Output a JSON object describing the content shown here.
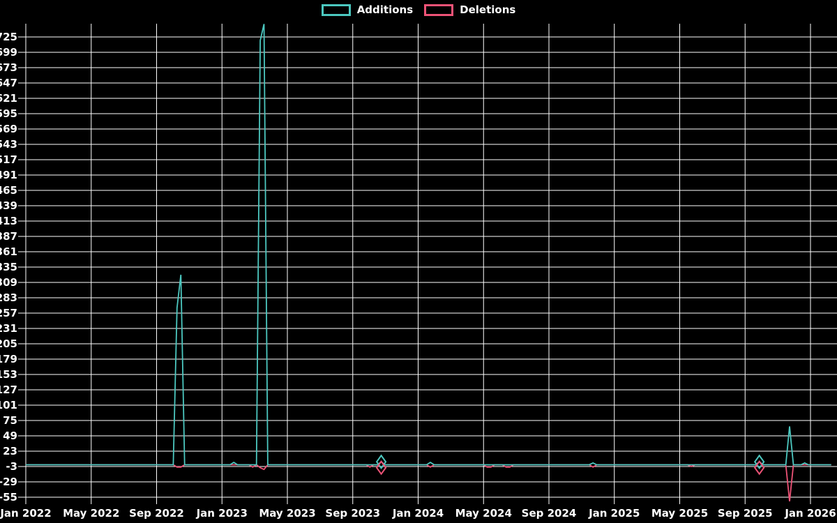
{
  "app": {
    "background_color": "#000000",
    "grid_color": "#ffffff",
    "text_color": "#ffffff"
  },
  "chart_data": {
    "type": "line",
    "title": "",
    "legend_position": "top-center",
    "grid": true,
    "x_axis": {
      "labels": [
        "Jan 2022",
        "May 2022",
        "Sep 2022",
        "Jan 2023",
        "May 2023",
        "Sep 2023",
        "Jan 2024",
        "May 2024",
        "Sep 2024",
        "Jan 2025",
        "May 2025",
        "Sep 2025",
        "Jan 2026"
      ],
      "months_per_label": 4
    },
    "y_axis": {
      "tick_max": 725,
      "tick_min": -55,
      "tick_step": 26,
      "domain_top": 747,
      "domain_bottom": -67
    },
    "week0_date": "2022-01-02",
    "weeks_total": 213,
    "baseline_value": 0,
    "series": [
      {
        "name": "Additions",
        "color": "#4CC8C0",
        "events": [
          {
            "week": 40,
            "date": "2022-10-09",
            "value": 266
          },
          {
            "week": 41,
            "date": "2022-10-16",
            "value": 322
          },
          {
            "week": 55,
            "date": "2023-01-22",
            "value": 4
          },
          {
            "week": 62,
            "date": "2023-03-12",
            "value": 719
          },
          {
            "week": 63,
            "date": "2023-03-19",
            "value": 747
          },
          {
            "week": 94,
            "date": "2023-10-22",
            "value": 5,
            "marker": true
          },
          {
            "week": 107,
            "date": "2024-01-21",
            "value": 4
          },
          {
            "week": 150,
            "date": "2024-11-17",
            "value": 3
          },
          {
            "week": 194,
            "date": "2025-09-21",
            "value": 5,
            "marker": true
          },
          {
            "week": 202,
            "date": "2025-11-16",
            "value": 65
          },
          {
            "week": 206,
            "date": "2025-12-14",
            "value": 3
          }
        ]
      },
      {
        "name": "Deletions",
        "color": "#EE5377",
        "events": [
          {
            "week": 40,
            "date": "2022-10-09",
            "value": -4
          },
          {
            "week": 41,
            "date": "2022-10-16",
            "value": -4
          },
          {
            "week": 60,
            "date": "2023-02-26",
            "value": -4
          },
          {
            "week": 62,
            "date": "2023-03-12",
            "value": -5
          },
          {
            "week": 63,
            "date": "2023-03-19",
            "value": -8
          },
          {
            "week": 91,
            "date": "2023-10-01",
            "value": -4
          },
          {
            "week": 94,
            "date": "2023-10-22",
            "value": -5,
            "marker": true
          },
          {
            "week": 107,
            "date": "2024-01-21",
            "value": -4
          },
          {
            "week": 122,
            "date": "2024-05-05",
            "value": -4
          },
          {
            "week": 123,
            "date": "2024-05-12",
            "value": -4
          },
          {
            "week": 127,
            "date": "2024-06-09",
            "value": -4
          },
          {
            "week": 128,
            "date": "2024-06-16",
            "value": -4
          },
          {
            "week": 150,
            "date": "2024-11-17",
            "value": -4
          },
          {
            "week": 176,
            "date": "2025-05-18",
            "value": -3
          },
          {
            "week": 194,
            "date": "2025-09-21",
            "value": -5,
            "marker": true
          },
          {
            "week": 202,
            "date": "2025-11-16",
            "value": -62
          }
        ]
      }
    ]
  }
}
